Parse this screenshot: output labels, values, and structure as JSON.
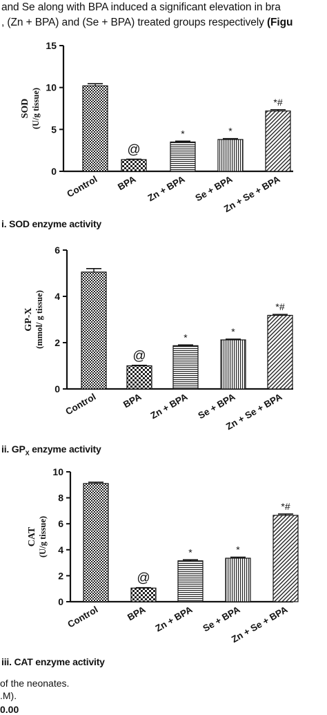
{
  "text": {
    "line1": "and Se along with BPA induced a significant elevation in bra",
    "line2_prefix": ", (Zn + BPA) and (Se + BPA) treated groups respectively ",
    "line2_bold": "(Figu",
    "footer1": "of the neonates.",
    "footer2": ".M).",
    "footer3": "0.00"
  },
  "chart_data": [
    {
      "type": "bar",
      "ylabel": "SOD",
      "ylabel_unit": "(U/g tissue)",
      "ylim": [
        0,
        15
      ],
      "yticks": [
        "0",
        "5",
        "10",
        "15"
      ],
      "categories": [
        "Control",
        "BPA",
        "Zn + BPA",
        "Se + BPA",
        "Zn + Se + BPA"
      ],
      "values": [
        10.2,
        1.4,
        3.5,
        3.8,
        7.2
      ],
      "errors": [
        0.25,
        0.05,
        0.1,
        0.1,
        0.15
      ],
      "annotations": [
        "",
        "@",
        "*",
        "*",
        "*#"
      ],
      "caption": "i. SOD enzyme activity"
    },
    {
      "type": "bar",
      "ylabel": "GP-X",
      "ylabel_unit": "(mmol/ g tissue)",
      "ylim": [
        0,
        6
      ],
      "yticks": [
        "0",
        "2",
        "4",
        "6"
      ],
      "categories": [
        "Control",
        "BPA",
        "Zn + BPA",
        "Se + BPA",
        "Zn + Se + BPA"
      ],
      "values": [
        5.05,
        1.0,
        1.87,
        2.12,
        3.18
      ],
      "errors": [
        0.15,
        0.02,
        0.03,
        0.03,
        0.04
      ],
      "annotations": [
        "",
        "@",
        "*",
        "*",
        "*#"
      ],
      "caption_prefix": "ii. GP",
      "caption_sub": "X",
      "caption_suffix": " enzyme activity"
    },
    {
      "type": "bar",
      "ylabel": "CAT",
      "ylabel_unit": "(U/g tissue)",
      "ylim": [
        0,
        10
      ],
      "yticks": [
        "0",
        "2",
        "4",
        "6",
        "8",
        "10"
      ],
      "categories": [
        "Control",
        "BPA",
        "Zn + BPA",
        "Se + BPA",
        "Zn + Se + BPA"
      ],
      "values": [
        9.1,
        1.05,
        3.15,
        3.35,
        6.65
      ],
      "errors": [
        0.1,
        0.03,
        0.08,
        0.08,
        0.1
      ],
      "annotations": [
        "",
        "@",
        "*",
        "*",
        "*#"
      ],
      "caption": "iii. CAT enzyme activity"
    }
  ]
}
